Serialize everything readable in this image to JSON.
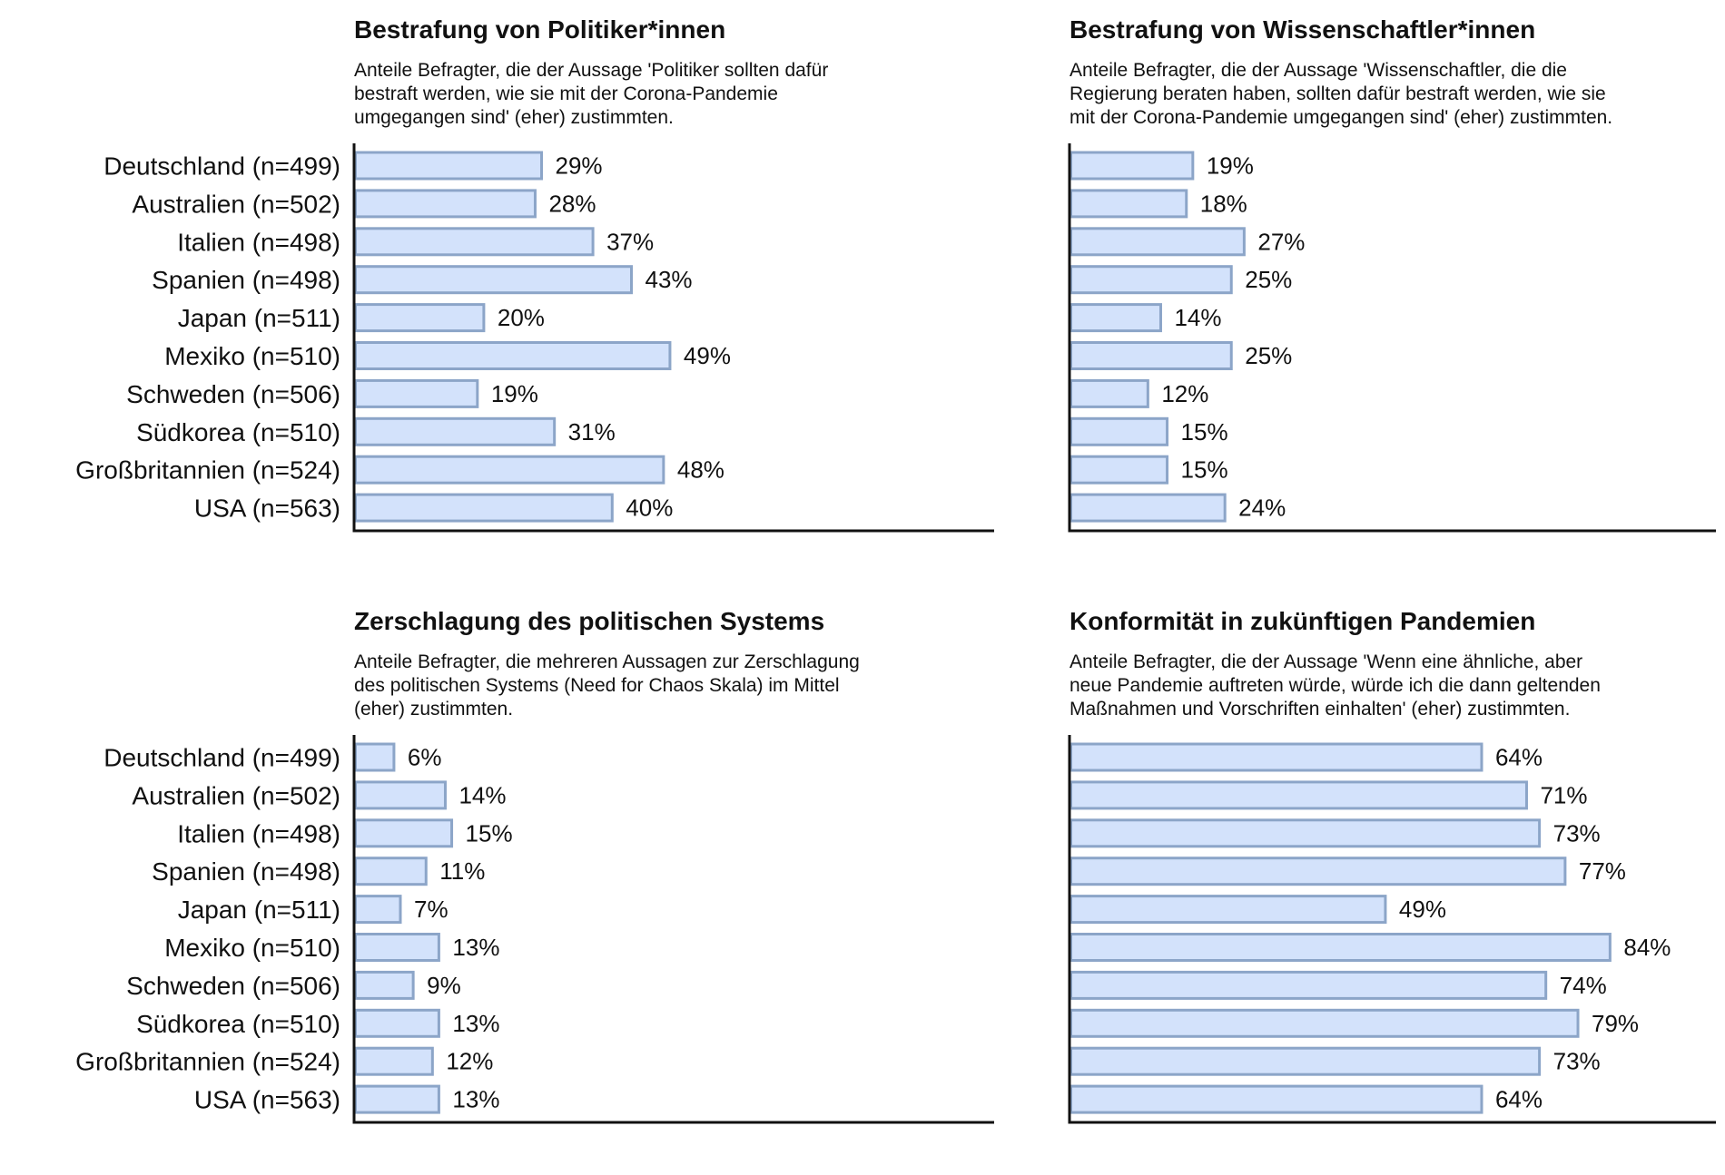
{
  "chart_data": [
    {
      "type": "bar",
      "orientation": "horizontal",
      "title": "Bestrafung von Politiker*innen",
      "subtitle_lines": [
        "Anteile Befragter, die der Aussage 'Politiker sollten dafür",
        "bestraft werden, wie sie mit der Corona-Pandemie",
        "umgegangen sind' (eher) zustimmten."
      ],
      "categories": [
        "Deutschland (n=499)",
        "Australien (n=502)",
        "Italien (n=498)",
        "Spanien (n=498)",
        "Japan (n=511)",
        "Mexiko (n=510)",
        "Schweden (n=506)",
        "Südkorea (n=510)",
        "Großbritannien (n=524)",
        "USA (n=563)"
      ],
      "values": [
        29,
        28,
        37,
        43,
        20,
        49,
        19,
        31,
        48,
        40
      ],
      "value_labels": [
        "29%",
        "28%",
        "37%",
        "43%",
        "20%",
        "49%",
        "19%",
        "31%",
        "48%",
        "40%"
      ],
      "xlim": [
        0,
        100
      ],
      "grid": false,
      "colors": {
        "bar_fill": "#d3e2fb",
        "bar_stroke": "#8ca5c8"
      }
    },
    {
      "type": "bar",
      "orientation": "horizontal",
      "title": "Bestrafung von Wissenschaftler*innen",
      "subtitle_lines": [
        "Anteile Befragter, die der Aussage 'Wissenschaftler, die die",
        "Regierung beraten haben, sollten dafür bestraft werden, wie sie",
        "mit der Corona-Pandemie umgegangen sind' (eher) zustimmten."
      ],
      "categories": [
        "Deutschland (n=499)",
        "Australien (n=502)",
        "Italien (n=498)",
        "Spanien (n=498)",
        "Japan (n=511)",
        "Mexiko (n=510)",
        "Schweden (n=506)",
        "Südkorea (n=510)",
        "Großbritannien (n=524)",
        "USA (n=563)"
      ],
      "show_category_labels": false,
      "values": [
        19,
        18,
        27,
        25,
        14,
        25,
        12,
        15,
        15,
        24
      ],
      "value_labels": [
        "19%",
        "18%",
        "27%",
        "25%",
        "14%",
        "25%",
        "12%",
        "15%",
        "15%",
        "24%"
      ],
      "xlim": [
        0,
        100
      ],
      "grid": false,
      "colors": {
        "bar_fill": "#d3e2fb",
        "bar_stroke": "#8ca5c8"
      }
    },
    {
      "type": "bar",
      "orientation": "horizontal",
      "title": "Zerschlagung des politischen Systems",
      "subtitle_lines": [
        "Anteile Befragter, die mehreren Aussagen zur Zerschlagung",
        "des politischen Systems (Need for Chaos Skala) im Mittel",
        "(eher) zustimmten."
      ],
      "categories": [
        "Deutschland (n=499)",
        "Australien (n=502)",
        "Italien (n=498)",
        "Spanien (n=498)",
        "Japan (n=511)",
        "Mexiko (n=510)",
        "Schweden (n=506)",
        "Südkorea (n=510)",
        "Großbritannien (n=524)",
        "USA (n=563)"
      ],
      "values": [
        6,
        14,
        15,
        11,
        7,
        13,
        9,
        13,
        12,
        13
      ],
      "value_labels": [
        "6%",
        "14%",
        "15%",
        "11%",
        "7%",
        "13%",
        "9%",
        "13%",
        "12%",
        "13%"
      ],
      "xlim": [
        0,
        100
      ],
      "grid": false,
      "colors": {
        "bar_fill": "#d3e2fb",
        "bar_stroke": "#8ca5c8"
      }
    },
    {
      "type": "bar",
      "orientation": "horizontal",
      "title": "Konformität in zukünftigen Pandemien",
      "subtitle_lines": [
        "Anteile Befragter, die der Aussage 'Wenn eine ähnliche, aber",
        "neue Pandemie auftreten würde, würde ich die dann geltenden",
        "Maßnahmen und Vorschriften einhalten' (eher) zustimmten."
      ],
      "categories": [
        "Deutschland (n=499)",
        "Australien (n=502)",
        "Italien (n=498)",
        "Spanien (n=498)",
        "Japan (n=511)",
        "Mexiko (n=510)",
        "Schweden (n=506)",
        "Südkorea (n=510)",
        "Großbritannien (n=524)",
        "USA (n=563)"
      ],
      "show_category_labels": false,
      "values": [
        64,
        71,
        73,
        77,
        49,
        84,
        74,
        79,
        73,
        64
      ],
      "value_labels": [
        "64%",
        "71%",
        "73%",
        "77%",
        "49%",
        "84%",
        "74%",
        "79%",
        "73%",
        "64%"
      ],
      "xlim": [
        0,
        100
      ],
      "grid": false,
      "colors": {
        "bar_fill": "#d3e2fb",
        "bar_stroke": "#8ca5c8"
      }
    }
  ]
}
